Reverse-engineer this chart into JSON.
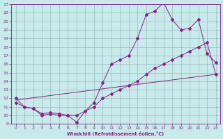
{
  "xlabel": "Windchill (Refroidissement éolien,°C)",
  "bg_color": "#c8eaea",
  "line_color": "#882288",
  "grid_color": "#99bbbb",
  "xlim": [
    -0.5,
    23.5
  ],
  "ylim": [
    9,
    23
  ],
  "xticks": [
    0,
    1,
    2,
    3,
    4,
    5,
    6,
    7,
    8,
    9,
    10,
    11,
    12,
    13,
    14,
    15,
    16,
    17,
    18,
    19,
    20,
    21,
    22,
    23
  ],
  "yticks": [
    9,
    10,
    11,
    12,
    13,
    14,
    15,
    16,
    17,
    18,
    19,
    20,
    21,
    22,
    23
  ],
  "line1_x": [
    0,
    1,
    2,
    3,
    4,
    5,
    6,
    7,
    8,
    9,
    10,
    11,
    12,
    13,
    14,
    15,
    16,
    17,
    18,
    19,
    20,
    21,
    22,
    23
  ],
  "line1_y": [
    12,
    11,
    10.8,
    10,
    10.2,
    10,
    10,
    9.2,
    10.5,
    11.5,
    13.8,
    16,
    16.5,
    17,
    19,
    21.8,
    22.2,
    23.2,
    21.2,
    20.0,
    20.2,
    21.2,
    17.2,
    16.2
  ],
  "line2_x": [
    0,
    1,
    2,
    3,
    4,
    5,
    6,
    7,
    8,
    9,
    10,
    11,
    12,
    13,
    14,
    15,
    16,
    17,
    18,
    19,
    20,
    21,
    22,
    23
  ],
  "line2_y": [
    11.5,
    11,
    10.8,
    10.2,
    10.3,
    10.2,
    10,
    10,
    10.5,
    11,
    12,
    12.5,
    13,
    13.5,
    14,
    14.8,
    15.5,
    16.0,
    16.5,
    17.0,
    17.5,
    18.0,
    18.5,
    14.8
  ],
  "line3_x": [
    0,
    23
  ],
  "line3_y": [
    11.8,
    14.8
  ]
}
